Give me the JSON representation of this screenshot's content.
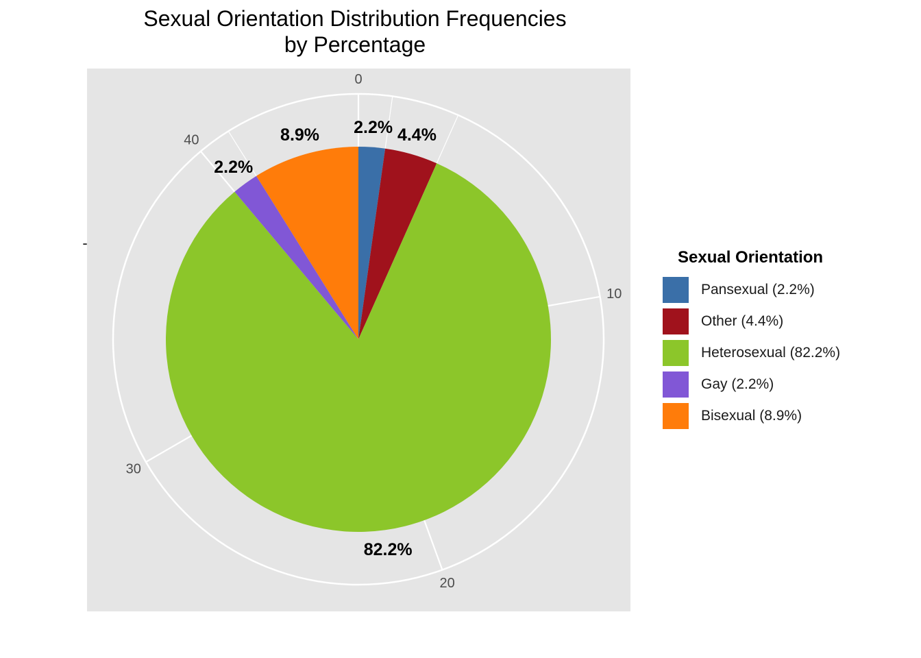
{
  "chart_data": {
    "type": "pie",
    "title": "Sexual Orientation Distribution Frequencies",
    "subtitle": "by Percentage",
    "xlabel": "",
    "ylabel": "-",
    "theta_ticks": [
      "0",
      "10",
      "20",
      "30",
      "40"
    ],
    "theta_total": 45,
    "slices": [
      {
        "label": "Pansexual",
        "legend_label": "Pansexual (2.2%)",
        "percent_label": "2.2%",
        "value": 1,
        "color": "#3a6fa8"
      },
      {
        "label": "Other",
        "legend_label": "Other (4.4%)",
        "percent_label": "4.4%",
        "value": 2,
        "color": "#a0121c"
      },
      {
        "label": "Heterosexual",
        "legend_label": "Heterosexual (82.2%)",
        "percent_label": "82.2%",
        "value": 37,
        "color": "#8cc62a"
      },
      {
        "label": "Gay",
        "legend_label": "Gay (2.2%)",
        "percent_label": "2.2%",
        "value": 1,
        "color": "#8157d6"
      },
      {
        "label": "Bisexual",
        "legend_label": "Bisexual (8.9%)",
        "percent_label": "8.9%",
        "value": 4,
        "color": "#ff7c0a"
      }
    ],
    "legend": {
      "title": "Sexual Orientation",
      "position": "right"
    },
    "panel_background": "#e5e5e5",
    "grid": true
  }
}
